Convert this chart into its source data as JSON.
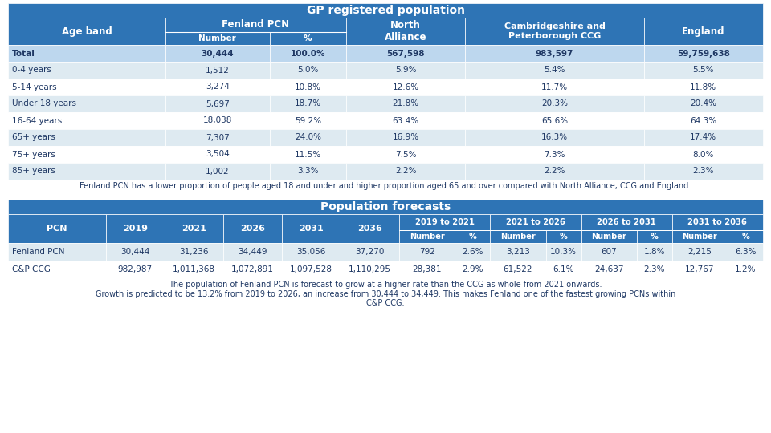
{
  "title1": "GP registered population",
  "title2": "Population forecasts",
  "header_bg": "#2E74B5",
  "row_bg_light": "#DEEAF1",
  "row_bg_white": "#FFFFFF",
  "total_row_bg": "#BDD7EE",
  "header_text_color": "#FFFFFF",
  "data_text_color": "#1F3864",
  "note_text_color": "#1F3864",
  "table1_rows": [
    [
      "Total",
      "30,444",
      "100.0%",
      "567,598",
      "983,597",
      "59,759,638"
    ],
    [
      "0-4 years",
      "1,512",
      "5.0%",
      "5.9%",
      "5.4%",
      "5.5%"
    ],
    [
      "5-14 years",
      "3,274",
      "10.8%",
      "12.6%",
      "11.7%",
      "11.8%"
    ],
    [
      "Under 18 years",
      "5,697",
      "18.7%",
      "21.8%",
      "20.3%",
      "20.4%"
    ],
    [
      "16-64 years",
      "18,038",
      "59.2%",
      "63.4%",
      "65.6%",
      "64.3%"
    ],
    [
      "65+ years",
      "7,307",
      "24.0%",
      "16.9%",
      "16.3%",
      "17.4%"
    ],
    [
      "75+ years",
      "3,504",
      "11.5%",
      "7.5%",
      "7.3%",
      "8.0%"
    ],
    [
      "85+ years",
      "1,002",
      "3.3%",
      "2.2%",
      "2.2%",
      "2.3%"
    ]
  ],
  "note1": "Fenland PCN has a lower proportion of people aged 18 and under and higher proportion aged 65 and over compared with North Alliance, CCG and England.",
  "note2": "The population of Fenland PCN is forecast to grow at a higher rate than the CCG as whole from 2021 onwards.\nGrowth is predicted to be 13.2% from 2019 to 2026, an increase from 30,444 to 34,449. This makes Fenland one of the fastest growing PCNs within\nC&P CCG.",
  "table2_rows": [
    [
      "Fenland PCN",
      "30,444",
      "31,236",
      "34,449",
      "35,056",
      "37,270",
      "792",
      "2.6%",
      "3,213",
      "10.3%",
      "607",
      "1.8%",
      "2,215",
      "6.3%"
    ],
    [
      "C&P CCG",
      "982,987",
      "1,011,368",
      "1,072,891",
      "1,097,528",
      "1,110,295",
      "28,381",
      "2.9%",
      "61,522",
      "6.1%",
      "24,637",
      "2.3%",
      "12,767",
      "1.2%"
    ]
  ]
}
